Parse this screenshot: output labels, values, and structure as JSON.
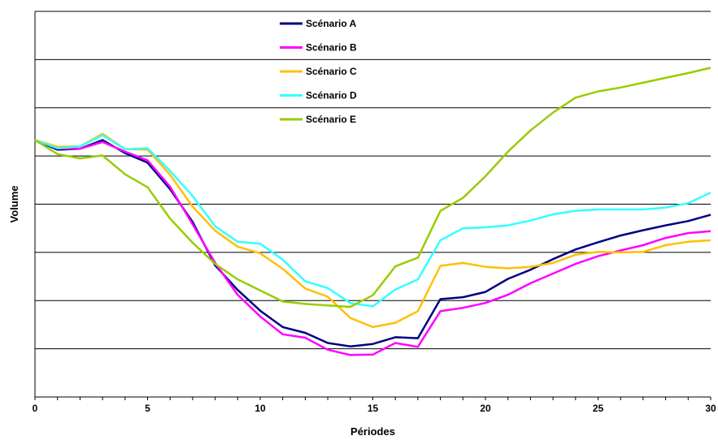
{
  "chart_data": {
    "type": "line",
    "title": "",
    "xlabel": "Périodes",
    "ylabel": "Volume",
    "xlim": [
      0,
      30
    ],
    "ylim": [
      0,
      8
    ],
    "xticks": [
      0,
      5,
      10,
      15,
      20,
      25,
      30
    ],
    "xtick_labels": [
      "0",
      "5",
      "10",
      "15",
      "20",
      "25",
      "30"
    ],
    "y_tick_labels_shown": false,
    "grid": "horizontal",
    "legend_position": "top-left",
    "x": [
      0,
      1,
      2,
      3,
      4,
      5,
      6,
      7,
      8,
      9,
      10,
      11,
      12,
      13,
      14,
      15,
      16,
      17,
      18,
      19,
      20,
      21,
      22,
      23,
      24,
      25,
      26,
      27,
      28,
      29,
      30
    ],
    "series": [
      {
        "name": "Scénario A",
        "color": "#000080",
        "values": [
          5.33,
          5.13,
          5.15,
          5.33,
          5.06,
          4.86,
          4.31,
          3.63,
          2.73,
          2.22,
          1.79,
          1.45,
          1.33,
          1.12,
          1.05,
          1.1,
          1.24,
          1.22,
          2.03,
          2.07,
          2.18,
          2.45,
          2.64,
          2.86,
          3.06,
          3.21,
          3.35,
          3.46,
          3.56,
          3.65,
          3.78
        ]
      },
      {
        "name": "Scénario B",
        "color": "#FF00FF",
        "values": [
          5.33,
          5.16,
          5.15,
          5.29,
          5.09,
          4.91,
          4.36,
          3.58,
          2.78,
          2.12,
          1.67,
          1.3,
          1.23,
          0.98,
          0.87,
          0.88,
          1.12,
          1.04,
          1.78,
          1.85,
          1.95,
          2.12,
          2.36,
          2.56,
          2.76,
          2.92,
          3.04,
          3.15,
          3.3,
          3.4,
          3.44
        ]
      },
      {
        "name": "Scénario C",
        "color": "#FFC000",
        "values": [
          5.33,
          5.19,
          5.2,
          5.46,
          5.14,
          5.13,
          4.61,
          3.95,
          3.45,
          3.12,
          2.98,
          2.66,
          2.25,
          2.08,
          1.64,
          1.45,
          1.54,
          1.78,
          2.72,
          2.78,
          2.7,
          2.67,
          2.7,
          2.78,
          2.95,
          3.01,
          3.0,
          3.01,
          3.15,
          3.22,
          3.25
        ]
      },
      {
        "name": "Scénario D",
        "color": "#33FFFF",
        "values": [
          5.33,
          5.16,
          5.2,
          5.43,
          5.14,
          5.16,
          4.69,
          4.17,
          3.54,
          3.22,
          3.18,
          2.85,
          2.4,
          2.26,
          1.95,
          1.88,
          2.23,
          2.44,
          3.25,
          3.5,
          3.52,
          3.56,
          3.66,
          3.79,
          3.86,
          3.89,
          3.89,
          3.89,
          3.93,
          4.02,
          4.24
        ]
      },
      {
        "name": "Scénario E",
        "color": "#99CC00",
        "values": [
          5.33,
          5.04,
          4.95,
          5.01,
          4.62,
          4.35,
          3.7,
          3.2,
          2.76,
          2.44,
          2.21,
          1.98,
          1.93,
          1.9,
          1.87,
          2.11,
          2.71,
          2.89,
          3.86,
          4.13,
          4.58,
          5.09,
          5.53,
          5.9,
          6.21,
          6.34,
          6.42,
          6.52,
          6.62,
          6.72,
          6.83
        ]
      }
    ]
  }
}
